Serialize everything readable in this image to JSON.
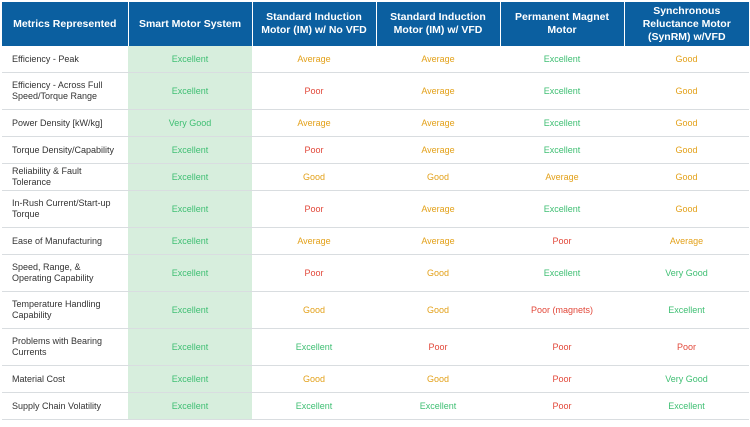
{
  "headers": [
    "Metrics Represented",
    "Smart Motor System",
    "Standard Induction Motor (IM) w/ No VFD",
    "Standard Induction Motor (IM) w/ VFD",
    "Permanent Magnet Motor",
    "Synchronous Reluctance Motor (SynRM) w/VFD"
  ],
  "colors": {
    "header_bg": "#0b5fa0",
    "smart_col_bg": "#d7eedd",
    "excellent": "#3fbf73",
    "very_good": "#3fbf73",
    "good": "#e3a11a",
    "average": "#e3a11a",
    "poor": "#e2483a"
  },
  "rows": [
    {
      "metric": "Efficiency - Peak",
      "values": [
        "Excellent",
        "Average",
        "Average",
        "Excellent",
        "Good"
      ]
    },
    {
      "metric": "Efficiency - Across Full Speed/Torque Range",
      "values": [
        "Excellent",
        "Poor",
        "Average",
        "Excellent",
        "Good"
      ]
    },
    {
      "metric": "Power Density [kW/kg]",
      "values": [
        "Very Good",
        "Average",
        "Average",
        "Excellent",
        "Good"
      ]
    },
    {
      "metric": "Torque Density/Capability",
      "values": [
        "Excellent",
        "Poor",
        "Average",
        "Excellent",
        "Good"
      ]
    },
    {
      "metric": "Reliability & Fault Tolerance",
      "values": [
        "Excellent",
        "Good",
        "Good",
        "Average",
        "Good"
      ]
    },
    {
      "metric": "In-Rush Current/Start-up Torque",
      "values": [
        "Excellent",
        "Poor",
        "Average",
        "Excellent",
        "Good"
      ]
    },
    {
      "metric": "Ease of Manufacturing",
      "values": [
        "Excellent",
        "Average",
        "Average",
        "Poor",
        "Average"
      ]
    },
    {
      "metric": "Speed, Range, & Operating Capability",
      "values": [
        "Excellent",
        "Poor",
        "Good",
        "Excellent",
        "Very Good"
      ]
    },
    {
      "metric": "Temperature Handling Capability",
      "values": [
        "Excellent",
        "Good",
        "Good",
        "Poor (magnets)",
        "Excellent"
      ]
    },
    {
      "metric": "Problems with Bearing Currents",
      "values": [
        "Excellent",
        "Excellent",
        "Poor",
        "Poor",
        "Poor"
      ]
    },
    {
      "metric": "Material Cost",
      "values": [
        "Excellent",
        "Good",
        "Good",
        "Poor",
        "Very Good"
      ]
    },
    {
      "metric": "Supply Chain Volatility",
      "values": [
        "Excellent",
        "Excellent",
        "Excellent",
        "Poor",
        "Excellent"
      ]
    }
  ]
}
